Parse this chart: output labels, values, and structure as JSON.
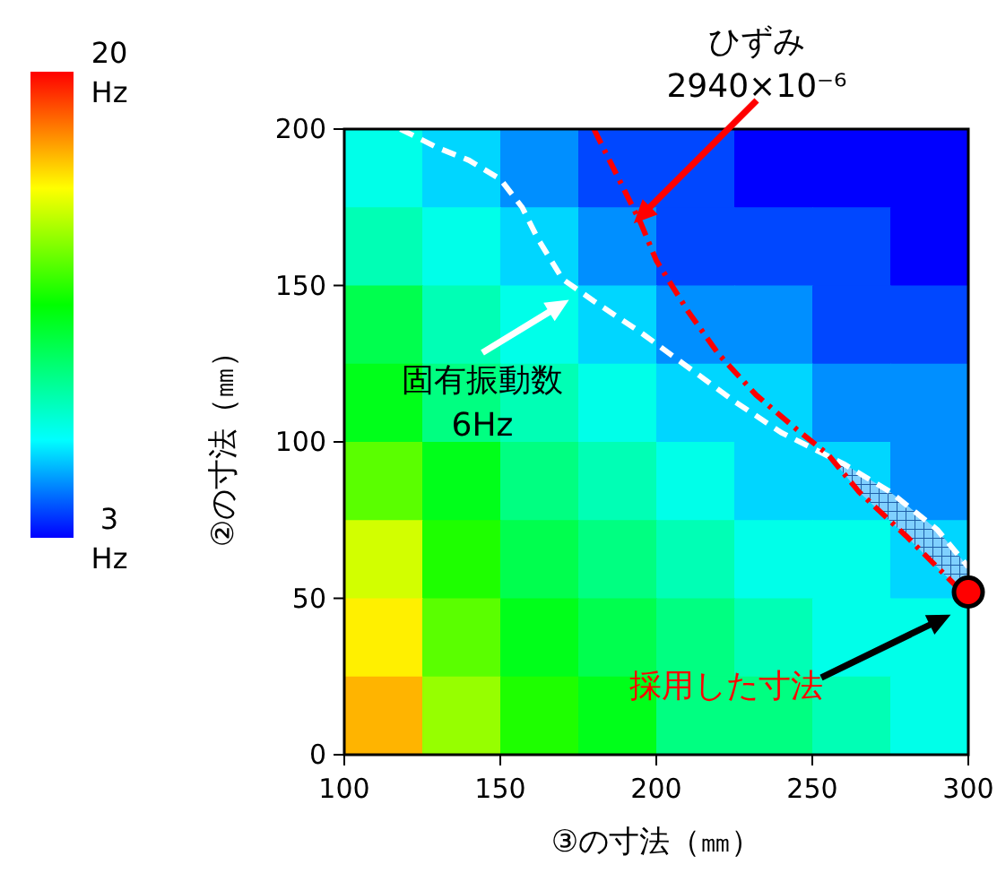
{
  "chart_data": {
    "type": "heatmap",
    "xlabel": "③の寸法（㎜）",
    "ylabel": "②の寸法（㎜）",
    "xlim": [
      100,
      300
    ],
    "xticks": [
      100,
      150,
      200,
      250,
      300
    ],
    "ylim": [
      0,
      200
    ],
    "yticks": [
      0,
      50,
      100,
      150,
      200
    ],
    "clim": [
      3,
      20
    ],
    "cticks": [
      {
        "value": 3,
        "label": "3\nHz"
      },
      {
        "value": 20,
        "label": "20\nHz"
      }
    ],
    "cells": [
      [
        7,
        6,
        5,
        4,
        4,
        3,
        3,
        3
      ],
      [
        8,
        7,
        6,
        5,
        4,
        4,
        4,
        3
      ],
      [
        10,
        8,
        7,
        6,
        5,
        5,
        4,
        4
      ],
      [
        11,
        9,
        8,
        7,
        6,
        6,
        5,
        5
      ],
      [
        13,
        11,
        9,
        8,
        7,
        6,
        6,
        5
      ],
      [
        15,
        12,
        10,
        9,
        8,
        7,
        7,
        6
      ],
      [
        16,
        13,
        11,
        10,
        9,
        8,
        7,
        7
      ],
      [
        17,
        14,
        12,
        11,
        9,
        9,
        8,
        7
      ]
    ],
    "series": [
      {
        "type": "line",
        "color": "#ffffff",
        "line_style": "dashed",
        "x": [
          118,
          130,
          140,
          150,
          157,
          162,
          170,
          180,
          195,
          210,
          225,
          240,
          250,
          260,
          275,
          290,
          300
        ],
        "values": [
          200,
          194,
          190,
          184,
          175,
          165,
          152,
          145,
          135,
          124,
          113,
          103,
          98,
          93,
          84,
          72,
          60
        ]
      },
      {
        "type": "line",
        "color": "#ff0000",
        "line_style": "dashdot",
        "x": [
          180,
          185,
          190,
          195,
          200,
          210,
          220,
          232,
          245,
          255,
          265,
          280,
          290,
          300
        ],
        "values": [
          200,
          190,
          180,
          170,
          158,
          142,
          128,
          115,
          104,
          96,
          84,
          70,
          60,
          50
        ]
      },
      {
        "type": "scatter",
        "color": "#ff0000",
        "marker": "circle",
        "x": [
          300
        ],
        "values": [
          52
        ]
      }
    ],
    "annotations": [
      {
        "text": "固有振動数\n6Hz",
        "x": 173,
        "y": 146
      },
      "ひずみ\n2940×10⁻⁶",
      "採用した寸法"
    ]
  }
}
